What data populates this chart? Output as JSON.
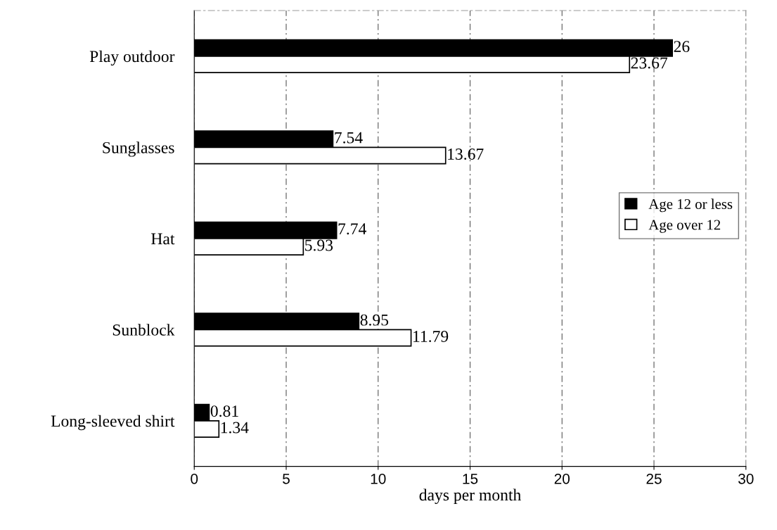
{
  "chart_data": {
    "type": "bar",
    "orientation": "horizontal",
    "xlabel": "days per month",
    "categories": [
      "Play outdoor",
      "Sunglasses",
      "Hat",
      "Sunblock",
      "Long-sleeved shirt"
    ],
    "series": [
      {
        "name": "Age 12 or less",
        "color": "#000000",
        "values": [
          26,
          7.54,
          7.74,
          8.95,
          0.81
        ]
      },
      {
        "name": "Age over 12",
        "color": "#ffffff",
        "values": [
          23.67,
          13.67,
          5.93,
          11.79,
          1.34
        ]
      }
    ],
    "xlim": [
      0,
      30
    ],
    "xticks": [
      0,
      5,
      10,
      15,
      20,
      25,
      30
    ],
    "grid": "x",
    "legend": "right",
    "data_labels": true
  }
}
